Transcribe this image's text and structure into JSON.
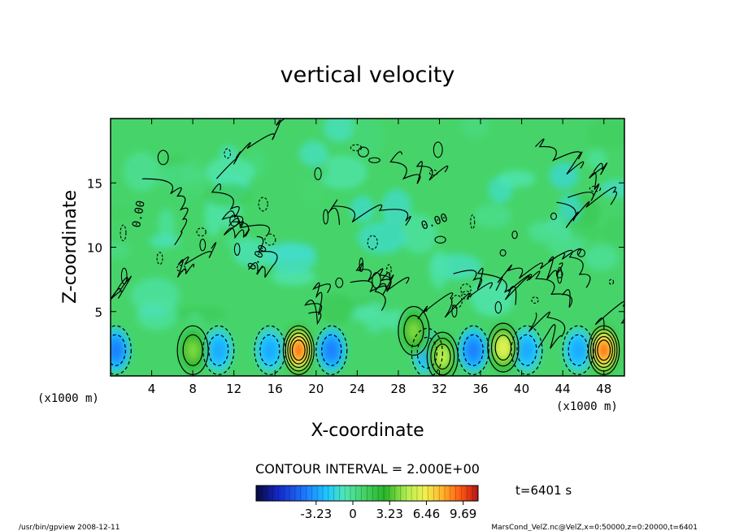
{
  "chart_data": {
    "type": "heatmap",
    "title": "vertical velocity",
    "xlabel": "X-coordinate",
    "ylabel": "Z-coordinate",
    "x_unit_left": "(x1000 m)",
    "x_unit_right": "(x1000 m)",
    "xlim": [
      0,
      50
    ],
    "ylim": [
      0,
      20
    ],
    "x_ticks": [
      "4",
      "8",
      "12",
      "16",
      "20",
      "24",
      "28",
      "32",
      "36",
      "40",
      "44",
      "48"
    ],
    "y_ticks": [
      "5",
      "10",
      "15"
    ],
    "contour_label": "0.00",
    "contour_interval": "CONTOUR INTERVAL = 2.000E+00",
    "time_label": "t=6401 s",
    "colorbar": {
      "range": [
        -8.5,
        11.0
      ],
      "ticks": [
        "-3.23",
        "0",
        "3.23",
        "6.46",
        "9.69"
      ]
    },
    "footer_left": "/usr/bin/gpview 2008-12-11",
    "footer_right": "MarsCond_VelZ.nc@VelZ,x=0:50000,z=0:20000,t=6401",
    "updrafts": [
      {
        "x": 8,
        "z": 2.0,
        "peak": 4
      },
      {
        "x": 18.3,
        "z": 2.0,
        "peak": 9
      },
      {
        "x": 29.5,
        "z": 3.5,
        "peak": 4
      },
      {
        "x": 32.3,
        "z": 1.5,
        "peak": 5
      },
      {
        "x": 38.2,
        "z": 2.2,
        "peak": 6
      },
      {
        "x": 48,
        "z": 2.0,
        "peak": 9
      }
    ],
    "downdrafts": [
      {
        "x": 0.5,
        "z": 2.0,
        "peak": -4
      },
      {
        "x": 10.5,
        "z": 2.0,
        "peak": -3
      },
      {
        "x": 15.5,
        "z": 2.0,
        "peak": -3
      },
      {
        "x": 21.5,
        "z": 2.0,
        "peak": -4
      },
      {
        "x": 30.8,
        "z": 1.8,
        "peak": -3
      },
      {
        "x": 35.3,
        "z": 2.0,
        "peak": -4
      },
      {
        "x": 40.5,
        "z": 2.0,
        "peak": -3
      },
      {
        "x": 45.5,
        "z": 2.0,
        "peak": -3
      }
    ]
  }
}
